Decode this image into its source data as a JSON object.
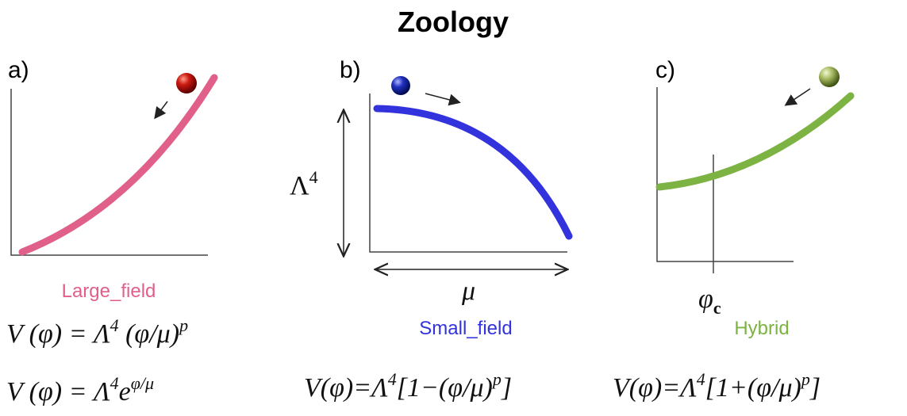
{
  "title": "Zoology",
  "panels": [
    {
      "label": "a)",
      "name": "Large_field",
      "color": "#e0608a",
      "formulas": [
        [
          "V (φ) = Λ",
          {
            "sup": "4"
          },
          " (φ/μ)",
          {
            "sup": "p"
          }
        ],
        [
          "V (φ) = Λ",
          {
            "sup": "4"
          },
          "e",
          {
            "sup": "φ/μ"
          }
        ]
      ]
    },
    {
      "label": "b)",
      "name": "Small_field",
      "color": "#3333dd",
      "axis_labels": [
        [
          "Λ",
          {
            "sup": "4"
          }
        ],
        [
          "μ"
        ]
      ],
      "formulas": [
        [
          "V(φ)=Λ",
          {
            "sup": "4"
          },
          "[1−(φ/μ)",
          {
            "sup": "p"
          },
          "]"
        ]
      ]
    },
    {
      "label": "c)",
      "name": "Hybrid",
      "color": "#7cb342",
      "axis_labels": [
        [
          "φ",
          {
            "sub": "c"
          }
        ]
      ],
      "formulas": [
        [
          "V(φ)=Λ",
          {
            "sup": "4"
          },
          "[1+(φ/μ)",
          {
            "sup": "p"
          },
          "]"
        ]
      ]
    }
  ]
}
